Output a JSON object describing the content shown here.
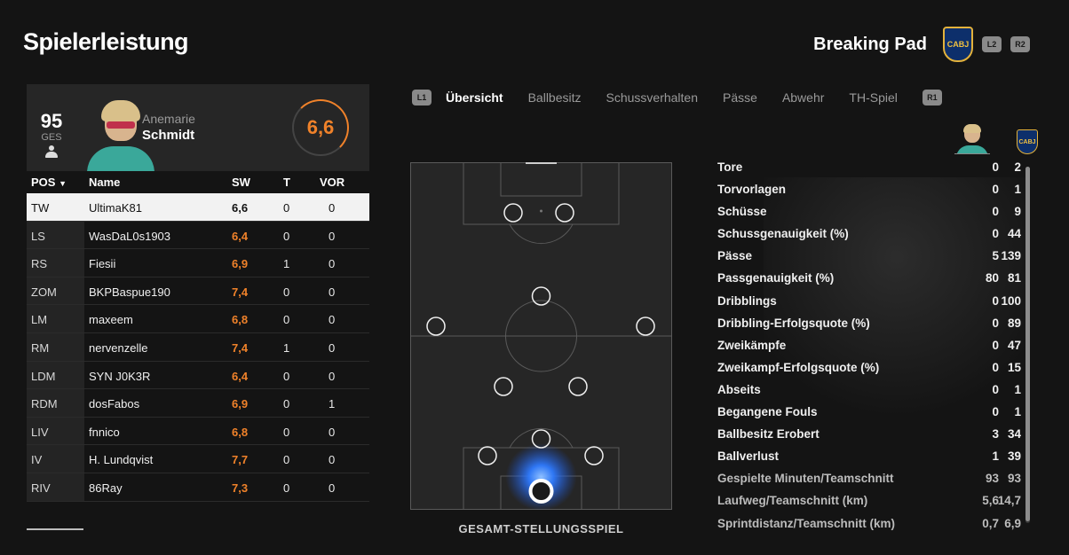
{
  "page_title": "Spielerleistung",
  "team": {
    "name": "Breaking Pad",
    "crest_text": "CABJ",
    "buttons": [
      "L2",
      "R2"
    ]
  },
  "player_card": {
    "ges_value": "95",
    "ges_label": "GES",
    "first_name": "Anemarie",
    "last_name": "Schmidt",
    "rating": "6,6",
    "rating_color": "#f0822a"
  },
  "roster": {
    "headers": {
      "pos": "POS",
      "name": "Name",
      "sw": "SW",
      "t": "T",
      "vor": "VOR"
    },
    "rows": [
      {
        "pos": "TW",
        "name": "UltimaK81",
        "sw": "6,6",
        "t": "0",
        "vor": "0"
      },
      {
        "pos": "LS",
        "name": "WasDaL0s1903",
        "sw": "6,4",
        "t": "0",
        "vor": "0"
      },
      {
        "pos": "RS",
        "name": "Fiesii",
        "sw": "6,9",
        "t": "1",
        "vor": "0"
      },
      {
        "pos": "ZOM",
        "name": "BKPBaspue190",
        "sw": "7,4",
        "t": "0",
        "vor": "0"
      },
      {
        "pos": "LM",
        "name": "maxeem",
        "sw": "6,8",
        "t": "0",
        "vor": "0"
      },
      {
        "pos": "RM",
        "name": "nervenzelle",
        "sw": "7,4",
        "t": "1",
        "vor": "0"
      },
      {
        "pos": "LDM",
        "name": "SYN J0K3R",
        "sw": "6,4",
        "t": "0",
        "vor": "0"
      },
      {
        "pos": "RDM",
        "name": "dosFabos",
        "sw": "6,9",
        "t": "0",
        "vor": "1"
      },
      {
        "pos": "LIV",
        "name": "fnnico",
        "sw": "6,8",
        "t": "0",
        "vor": "0"
      },
      {
        "pos": "IV",
        "name": "H. Lundqvist",
        "sw": "7,7",
        "t": "0",
        "vor": "0"
      },
      {
        "pos": "RIV",
        "name": "86Ray",
        "sw": "7,3",
        "t": "0",
        "vor": "0"
      }
    ]
  },
  "tabs": {
    "left_button": "L1",
    "right_button": "R1",
    "items": [
      "Übersicht",
      "Ballbesitz",
      "Schussverhalten",
      "Pässe",
      "Abwehr",
      "TH-Spiel"
    ],
    "active_index": 0
  },
  "pitch": {
    "label": "GESAMT-STELLUNGSSPIEL",
    "heat_color": "#2f7bff"
  },
  "stats": [
    {
      "label": "Tore",
      "player": "0",
      "team": "2"
    },
    {
      "label": "Torvorlagen",
      "player": "0",
      "team": "1"
    },
    {
      "label": "Schüsse",
      "player": "0",
      "team": "9"
    },
    {
      "label": "Schussgenauigkeit (%)",
      "player": "0",
      "team": "44"
    },
    {
      "label": "Pässe",
      "player": "5",
      "team": "139"
    },
    {
      "label": "Passgenauigkeit (%)",
      "player": "80",
      "team": "81"
    },
    {
      "label": "Dribblings",
      "player": "0",
      "team": "100"
    },
    {
      "label": "Dribbling-Erfolgsquote (%)",
      "player": "0",
      "team": "89"
    },
    {
      "label": "Zweikämpfe",
      "player": "0",
      "team": "47"
    },
    {
      "label": "Zweikampf-Erfolgsquote (%)",
      "player": "0",
      "team": "15"
    },
    {
      "label": "Abseits",
      "player": "0",
      "team": "1"
    },
    {
      "label": "Begangene Fouls",
      "player": "0",
      "team": "1"
    },
    {
      "label": "Ballbesitz Erobert",
      "player": "3",
      "team": "34"
    },
    {
      "label": "Ballverlust",
      "player": "1",
      "team": "39"
    },
    {
      "label": "Gespielte Minuten/Teamschnitt",
      "player": "93",
      "team": "93"
    },
    {
      "label": "Laufweg/Teamschnitt (km)",
      "player": "5,6",
      "team": "14,7"
    },
    {
      "label": "Sprintdistanz/Teamschnitt (km)",
      "player": "0,7",
      "team": "6,9"
    }
  ]
}
